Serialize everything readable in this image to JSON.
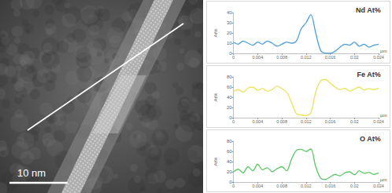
{
  "image": {
    "scale_bar_label": "10 nm"
  },
  "chart_data": [
    {
      "type": "line",
      "title": "Nd At%",
      "xlabel": "µm",
      "ylabel": "At%",
      "x": [
        0,
        0.0008,
        0.0016,
        0.0024,
        0.0032,
        0.004,
        0.0048,
        0.0056,
        0.0064,
        0.0072,
        0.008,
        0.0088,
        0.0096,
        0.0104,
        0.0112,
        0.012,
        0.0128,
        0.0136,
        0.0144,
        0.0152,
        0.016,
        0.0168,
        0.0176,
        0.0184,
        0.0192,
        0.02,
        0.0208,
        0.0216,
        0.0224,
        0.0232,
        0.024
      ],
      "values": [
        11,
        9,
        12,
        10,
        8,
        11,
        9,
        12,
        10,
        7,
        9,
        11,
        10,
        12,
        24,
        30,
        38,
        20,
        3,
        0,
        0,
        2,
        6,
        9,
        8,
        11,
        7,
        9,
        6,
        8,
        9
      ],
      "color": "#4a9fd8",
      "xlim": [
        0,
        0.024
      ],
      "xticks": [
        0,
        0.004,
        0.008,
        0.012,
        0.016,
        0.02,
        0.024
      ],
      "ylim": [
        0,
        40
      ],
      "yticks": [
        0,
        10,
        20,
        30,
        40
      ],
      "grid": false
    },
    {
      "type": "line",
      "title": "Fe At%",
      "xlabel": "µm",
      "ylabel": "At%",
      "x": [
        0,
        0.0008,
        0.0016,
        0.0024,
        0.0032,
        0.004,
        0.0048,
        0.0056,
        0.0064,
        0.0072,
        0.008,
        0.0088,
        0.0096,
        0.0104,
        0.0112,
        0.012,
        0.0128,
        0.0136,
        0.0144,
        0.0152,
        0.016,
        0.0168,
        0.0176,
        0.0184,
        0.0192,
        0.02,
        0.0208,
        0.0216,
        0.0224,
        0.0232,
        0.024
      ],
      "values": [
        52,
        55,
        50,
        58,
        60,
        54,
        57,
        52,
        55,
        62,
        57,
        50,
        30,
        8,
        5,
        4,
        10,
        50,
        72,
        75,
        68,
        60,
        55,
        58,
        52,
        56,
        60,
        54,
        57,
        55,
        58
      ],
      "color": "#ece35c",
      "xlim": [
        0,
        0.024
      ],
      "xticks": [
        0,
        0.004,
        0.008,
        0.012,
        0.016,
        0.02,
        0.024
      ],
      "ylim": [
        0,
        80
      ],
      "yticks": [
        0,
        20,
        40,
        60,
        80
      ],
      "grid": false
    },
    {
      "type": "line",
      "title": "O At%",
      "xlabel": "µm",
      "ylabel": "At%",
      "x": [
        0,
        0.0008,
        0.0016,
        0.0024,
        0.0032,
        0.004,
        0.0048,
        0.0056,
        0.0064,
        0.0072,
        0.008,
        0.0088,
        0.0096,
        0.0104,
        0.0112,
        0.012,
        0.0128,
        0.0136,
        0.0144,
        0.0152,
        0.016,
        0.0168,
        0.0176,
        0.0184,
        0.0192,
        0.02,
        0.0208,
        0.0216,
        0.0224,
        0.0232,
        0.024
      ],
      "values": [
        20,
        25,
        18,
        30,
        22,
        35,
        24,
        28,
        20,
        26,
        30,
        22,
        45,
        62,
        64,
        60,
        65,
        30,
        8,
        5,
        10,
        15,
        12,
        18,
        20,
        14,
        22,
        17,
        19,
        15,
        18
      ],
      "color": "#5cc865",
      "xlim": [
        0,
        0.024
      ],
      "xticks": [
        0,
        0.004,
        0.008,
        0.012,
        0.016,
        0.02,
        0.024
      ],
      "ylim": [
        0,
        80
      ],
      "yticks": [
        0,
        20,
        40,
        60,
        80
      ],
      "grid": false
    }
  ]
}
